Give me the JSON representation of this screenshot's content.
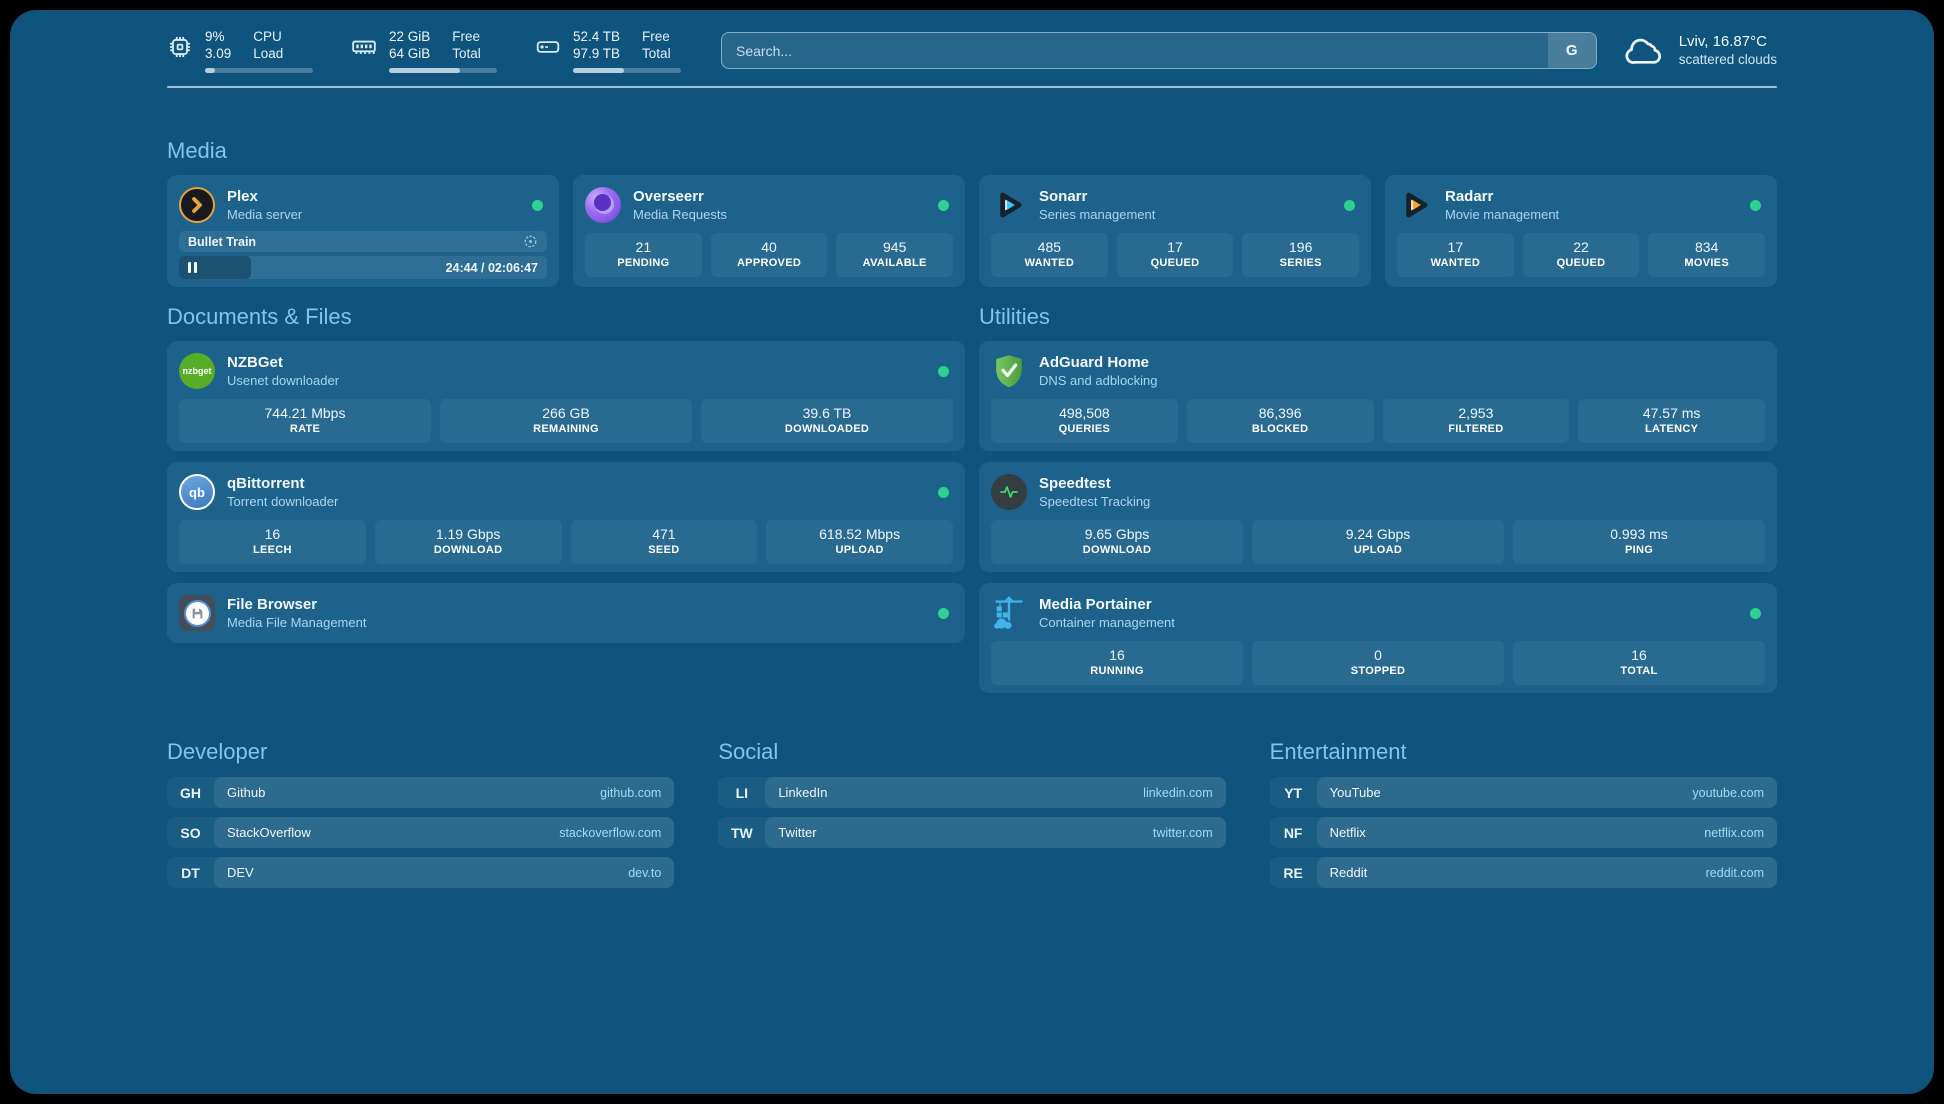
{
  "topbar": {
    "resources": [
      {
        "icon": "cpu-icon",
        "values": [
          "9%",
          "3.09"
        ],
        "labels": [
          "CPU",
          "Load"
        ],
        "progress_pct": 9
      },
      {
        "icon": "ram-icon",
        "values": [
          "22 GiB",
          "64 GiB"
        ],
        "labels": [
          "Free",
          "Total"
        ],
        "progress_pct": 66
      },
      {
        "icon": "disk-icon",
        "values": [
          "52.4 TB",
          "97.9 TB"
        ],
        "labels": [
          "Free",
          "Total"
        ],
        "progress_pct": 47
      }
    ],
    "search": {
      "placeholder": "Search...",
      "engine_button": "G"
    },
    "weather": {
      "location": "Lviv, 16.87°C",
      "condition": "scattered clouds"
    }
  },
  "sections": {
    "media": {
      "heading": "Media",
      "plex": {
        "title": "Plex",
        "subtitle": "Media server",
        "icon_glyph": "plex-chevron",
        "now_playing": "Bullet Train",
        "time": "24:44 / 02:06:47",
        "progress_pct": 19.5
      },
      "overseerr": {
        "title": "Overseerr",
        "subtitle": "Media Requests",
        "stats": [
          {
            "value": "21",
            "label": "PENDING"
          },
          {
            "value": "40",
            "label": "APPROVED"
          },
          {
            "value": "945",
            "label": "AVAILABLE"
          }
        ]
      },
      "sonarr": {
        "title": "Sonarr",
        "subtitle": "Series management",
        "stats": [
          {
            "value": "485",
            "label": "WANTED"
          },
          {
            "value": "17",
            "label": "QUEUED"
          },
          {
            "value": "196",
            "label": "SERIES"
          }
        ]
      },
      "radarr": {
        "title": "Radarr",
        "subtitle": "Movie management",
        "stats": [
          {
            "value": "17",
            "label": "WANTED"
          },
          {
            "value": "22",
            "label": "QUEUED"
          },
          {
            "value": "834",
            "label": "MOVIES"
          }
        ]
      }
    },
    "documents": {
      "heading": "Documents & Files",
      "nzbget": {
        "title": "NZBGet",
        "subtitle": "Usenet downloader",
        "icon_text": "nzbget",
        "stats": [
          {
            "value": "744.21 Mbps",
            "label": "RATE"
          },
          {
            "value": "266 GB",
            "label": "REMAINING"
          },
          {
            "value": "39.6 TB",
            "label": "DOWNLOADED"
          }
        ]
      },
      "qbittorrent": {
        "title": "qBittorrent",
        "subtitle": "Torrent downloader",
        "icon_text": "qb",
        "stats": [
          {
            "value": "16",
            "label": "LEECH"
          },
          {
            "value": "1.19 Gbps",
            "label": "DOWNLOAD"
          },
          {
            "value": "471",
            "label": "SEED"
          },
          {
            "value": "618.52 Mbps",
            "label": "UPLOAD"
          }
        ]
      },
      "filebrowser": {
        "title": "File Browser",
        "subtitle": "Media File Management"
      }
    },
    "utilities": {
      "heading": "Utilities",
      "adguard": {
        "title": "AdGuard Home",
        "subtitle": "DNS and adblocking",
        "stats": [
          {
            "value": "498,508",
            "label": "QUERIES"
          },
          {
            "value": "86,396",
            "label": "BLOCKED"
          },
          {
            "value": "2,953",
            "label": "FILTERED"
          },
          {
            "value": "47.57 ms",
            "label": "LATENCY"
          }
        ]
      },
      "speedtest": {
        "title": "Speedtest",
        "subtitle": "Speedtest Tracking",
        "stats": [
          {
            "value": "9.65 Gbps",
            "label": "DOWNLOAD"
          },
          {
            "value": "9.24 Gbps",
            "label": "UPLOAD"
          },
          {
            "value": "0.993 ms",
            "label": "PING"
          }
        ]
      },
      "portainer": {
        "title": "Media Portainer",
        "subtitle": "Container management",
        "stats": [
          {
            "value": "16",
            "label": "RUNNING"
          },
          {
            "value": "0",
            "label": "STOPPED"
          },
          {
            "value": "16",
            "label": "TOTAL"
          }
        ]
      }
    },
    "bookmarks": {
      "developer": {
        "heading": "Developer",
        "links": [
          {
            "abbr": "GH",
            "name": "Github",
            "url": "github.com"
          },
          {
            "abbr": "SO",
            "name": "StackOverflow",
            "url": "stackoverflow.com"
          },
          {
            "abbr": "DT",
            "name": "DEV",
            "url": "dev.to"
          }
        ]
      },
      "social": {
        "heading": "Social",
        "links": [
          {
            "abbr": "LI",
            "name": "LinkedIn",
            "url": "linkedin.com"
          },
          {
            "abbr": "TW",
            "name": "Twitter",
            "url": "twitter.com"
          }
        ]
      },
      "entertainment": {
        "heading": "Entertainment",
        "links": [
          {
            "abbr": "YT",
            "name": "YouTube",
            "url": "youtube.com"
          },
          {
            "abbr": "NF",
            "name": "Netflix",
            "url": "netflix.com"
          },
          {
            "abbr": "RE",
            "name": "Reddit",
            "url": "reddit.com"
          }
        ]
      }
    }
  },
  "colors": {
    "page_background": "#0f547d",
    "card_background": "#1d628b",
    "heading_accent": "#7fc6ed",
    "link_url": "#9fdcf6",
    "status_online": "#2ed28f",
    "plex_gold": "#e8a33d",
    "sonarr_cyan": "#35c5f4",
    "radarr_orange": "#f5a623",
    "adguard_green": "#5fae4b",
    "nzbget_green": "#58ad28"
  }
}
